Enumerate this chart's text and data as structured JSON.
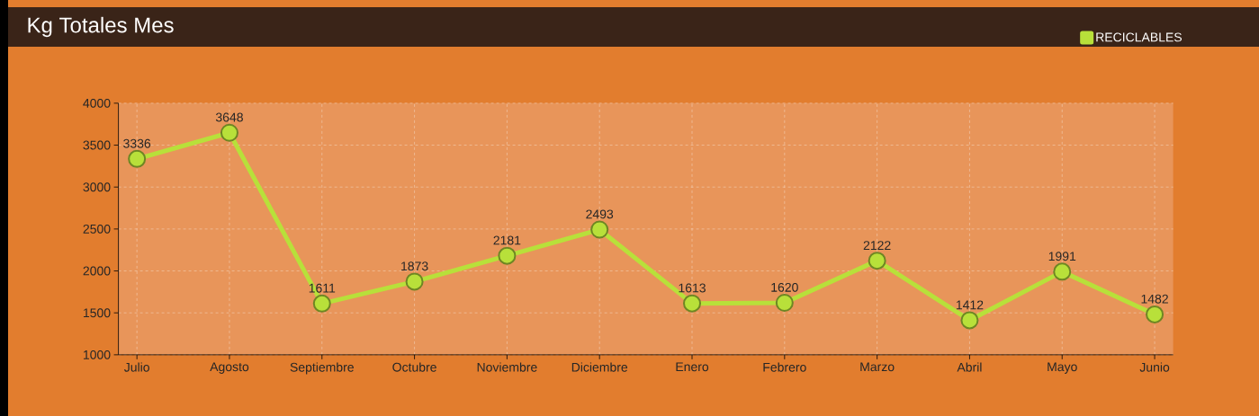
{
  "chart_data": {
    "type": "line",
    "title": "Kg Totales Mes",
    "categories": [
      "Julio",
      "Agosto",
      "Septiembre",
      "Octubre",
      "Noviembre",
      "Diciembre",
      "Enero",
      "Febrero",
      "Marzo",
      "Abril",
      "Mayo",
      "Junio"
    ],
    "series": [
      {
        "name": "RECICLABLES",
        "color": "#b8e03a",
        "values": [
          3336,
          3648,
          1611,
          1873,
          2181,
          2493,
          1613,
          1620,
          2122,
          1412,
          1991,
          1482
        ]
      }
    ],
    "ylim": [
      1000,
      4000
    ],
    "yticks": [
      1000,
      1500,
      2000,
      2500,
      3000,
      3500,
      4000
    ],
    "grid": true,
    "legend": "top right",
    "marker": "circle",
    "line_style": "solid",
    "data_labels": true
  }
}
